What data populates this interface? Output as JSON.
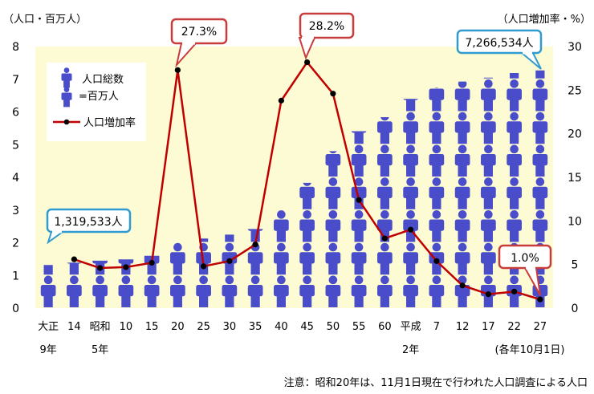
{
  "chart_data": {
    "type": "bar+line",
    "left_axis_label": "（人口・百万人）",
    "right_axis_label": "（人口増加率・%）",
    "left_ylim": [
      0,
      8
    ],
    "right_ylim": [
      0,
      30
    ],
    "left_ticks": [
      "0",
      "1",
      "2",
      "3",
      "4",
      "5",
      "6",
      "7",
      "8"
    ],
    "right_ticks": [
      "0",
      "5",
      "10",
      "15",
      "20",
      "25",
      "30"
    ],
    "grid": false,
    "categories": [
      {
        "l1": "大正",
        "l2": "9年"
      },
      {
        "l1": "14",
        "l2": ""
      },
      {
        "l1": "昭和",
        "l2": "5年"
      },
      {
        "l1": "10",
        "l2": ""
      },
      {
        "l1": "15",
        "l2": ""
      },
      {
        "l1": "20",
        "l2": ""
      },
      {
        "l1": "25",
        "l2": ""
      },
      {
        "l1": "30",
        "l2": ""
      },
      {
        "l1": "35",
        "l2": ""
      },
      {
        "l1": "40",
        "l2": ""
      },
      {
        "l1": "45",
        "l2": ""
      },
      {
        "l1": "50",
        "l2": ""
      },
      {
        "l1": "55",
        "l2": ""
      },
      {
        "l1": "60",
        "l2": ""
      },
      {
        "l1": "平成",
        "l2": "2年"
      },
      {
        "l1": "7",
        "l2": ""
      },
      {
        "l1": "12",
        "l2": ""
      },
      {
        "l1": "17",
        "l2": ""
      },
      {
        "l1": "22",
        "l2": ""
      },
      {
        "l1": "27",
        "l2": ""
      }
    ],
    "population_millions": [
      1.32,
      1.39,
      1.45,
      1.49,
      1.6,
      2.01,
      2.13,
      2.25,
      2.42,
      2.99,
      3.83,
      4.8,
      5.41,
      5.84,
      6.4,
      6.75,
      6.93,
      7.05,
      7.19,
      7.27
    ],
    "growth_rate_percent": [
      null,
      5.6,
      4.6,
      4.7,
      5.2,
      27.3,
      4.8,
      5.4,
      7.3,
      23.8,
      28.2,
      24.6,
      12.4,
      8.0,
      9.0,
      5.4,
      2.6,
      1.6,
      1.9,
      1.0
    ],
    "legend": {
      "population": "人口総数",
      "population_unit": "=百万人",
      "growth": "人口増加率"
    },
    "callouts": [
      {
        "text": "1,319,533人",
        "category_index": 0
      },
      {
        "text": "27.3%",
        "category_index": 5
      },
      {
        "text": "28.2%",
        "category_index": 10
      },
      {
        "text": "7,266,534人",
        "category_index": 19
      },
      {
        "text": "1.0%",
        "category_index": 19
      }
    ],
    "date_note": "(各年10月1日)",
    "footnote": "注意：昭和20年は、11月1日現在で行われた人口調査による人口",
    "colors": {
      "plot_bg": "#fdfbd3",
      "bar": "#4a4dc9",
      "line": "#c00000",
      "marker": "#000000",
      "callout_border_blue": "#2f9bd0",
      "callout_border_red": "#c83c3c"
    }
  }
}
